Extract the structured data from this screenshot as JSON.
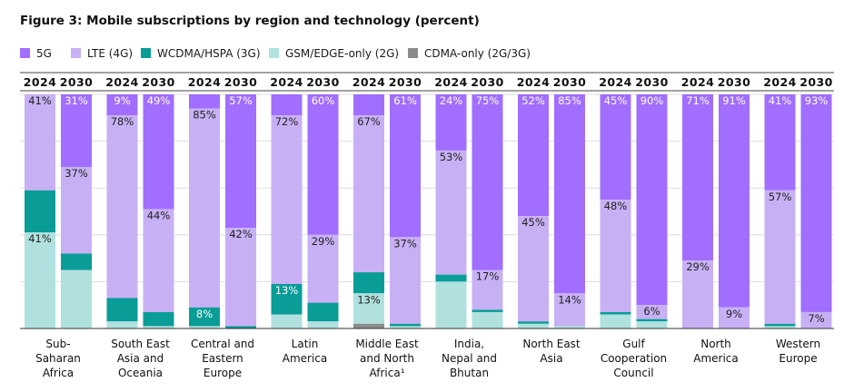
{
  "chart_data": {
    "type": "bar",
    "stacked": true,
    "title": "Figure 3: Mobile subscriptions by region and technology (percent)",
    "ylim": [
      0,
      100
    ],
    "grid": true,
    "legend_position": "top-left",
    "years": [
      "2024",
      "2030"
    ],
    "series": [
      {
        "name": "5G",
        "color": "#a16eff"
      },
      {
        "name": "LTE (4G)",
        "color": "#c8b0f5"
      },
      {
        "name": "WCDMA/HSPA (3G)",
        "color": "#0a9c97"
      },
      {
        "name": "GSM/EDGE-only (2G)",
        "color": "#b0e1df"
      },
      {
        "name": "CDMA-only (2G/3G)",
        "color": "#8c8c8c"
      }
    ],
    "categories": [
      {
        "label": [
          "Sub-",
          "Saharan",
          "Africa"
        ],
        "bars": [
          {
            "year": "2024",
            "values": [
              0,
              41,
              18,
              41,
              0
            ],
            "labels": [
              "",
              "41%",
              "",
              "41%",
              ""
            ]
          },
          {
            "year": "2030",
            "values": [
              31,
              37,
              7,
              25,
              0
            ],
            "labels": [
              "31%",
              "37%",
              "",
              "",
              ""
            ]
          }
        ]
      },
      {
        "label": [
          "South East",
          "Asia and",
          "Oceania"
        ],
        "bars": [
          {
            "year": "2024",
            "values": [
              9,
              78,
              10,
              3,
              0
            ],
            "labels": [
              "9%",
              "78%",
              "",
              "",
              ""
            ]
          },
          {
            "year": "2030",
            "values": [
              49,
              44,
              6,
              1,
              0
            ],
            "labels": [
              "49%",
              "44%",
              "",
              "",
              ""
            ]
          }
        ]
      },
      {
        "label": [
          "Central and",
          "Eastern",
          "Europe"
        ],
        "bars": [
          {
            "year": "2024",
            "values": [
              6,
              85,
              8,
              1,
              0
            ],
            "labels": [
              "",
              "85%",
              "8%",
              "",
              ""
            ]
          },
          {
            "year": "2030",
            "values": [
              57,
              42,
              1,
              0,
              0
            ],
            "labels": [
              "57%",
              "42%",
              "",
              "",
              ""
            ]
          }
        ]
      },
      {
        "label": [
          "Latin",
          "America"
        ],
        "bars": [
          {
            "year": "2024",
            "values": [
              9,
              72,
              13,
              6,
              0
            ],
            "labels": [
              "",
              "72%",
              "13%",
              "",
              ""
            ]
          },
          {
            "year": "2030",
            "values": [
              60,
              29,
              8,
              3,
              0
            ],
            "labels": [
              "60%",
              "29%",
              "",
              "",
              ""
            ]
          }
        ]
      },
      {
        "label": [
          "Middle East",
          "and North",
          "Africa¹"
        ],
        "bars": [
          {
            "year": "2024",
            "values": [
              9,
              67,
              9,
              13,
              2
            ],
            "labels": [
              "",
              "67%",
              "",
              "13%",
              ""
            ]
          },
          {
            "year": "2030",
            "values": [
              61,
              37,
              1,
              1,
              0
            ],
            "labels": [
              "61%",
              "37%",
              "",
              "",
              ""
            ]
          }
        ]
      },
      {
        "label": [
          "India,",
          "Nepal and",
          "Bhutan"
        ],
        "bars": [
          {
            "year": "2024",
            "values": [
              24,
              53,
              3,
              20,
              0
            ],
            "labels": [
              "24%",
              "53%",
              "",
              "",
              ""
            ]
          },
          {
            "year": "2030",
            "values": [
              75,
              17,
              1,
              7,
              0
            ],
            "labels": [
              "75%",
              "17%",
              "",
              "",
              ""
            ]
          }
        ]
      },
      {
        "label": [
          "North East",
          "Asia"
        ],
        "bars": [
          {
            "year": "2024",
            "values": [
              52,
              45,
              1,
              2,
              0
            ],
            "labels": [
              "52%",
              "45%",
              "",
              "",
              ""
            ]
          },
          {
            "year": "2030",
            "values": [
              85,
              14,
              0,
              1,
              0
            ],
            "labels": [
              "85%",
              "14%",
              "",
              "",
              ""
            ]
          }
        ]
      },
      {
        "label": [
          "Gulf",
          "Cooperation",
          "Council"
        ],
        "bars": [
          {
            "year": "2024",
            "values": [
              45,
              48,
              1,
              6,
              0
            ],
            "labels": [
              "45%",
              "48%",
              "",
              "",
              ""
            ]
          },
          {
            "year": "2030",
            "values": [
              90,
              6,
              1,
              3,
              0
            ],
            "labels": [
              "90%",
              "6%",
              "",
              "",
              ""
            ]
          }
        ]
      },
      {
        "label": [
          "North",
          "America"
        ],
        "bars": [
          {
            "year": "2024",
            "values": [
              71,
              29,
              0,
              0,
              0
            ],
            "labels": [
              "71%",
              "29%",
              "",
              "",
              ""
            ]
          },
          {
            "year": "2030",
            "values": [
              91,
              9,
              0,
              0,
              0
            ],
            "labels": [
              "91%",
              "9%",
              "",
              "",
              ""
            ]
          }
        ]
      },
      {
        "label": [
          "Western",
          "Europe"
        ],
        "bars": [
          {
            "year": "2024",
            "values": [
              41,
              57,
              1,
              1,
              0
            ],
            "labels": [
              "41%",
              "57%",
              "",
              "",
              ""
            ]
          },
          {
            "year": "2030",
            "values": [
              93,
              7,
              0,
              0,
              0
            ],
            "labels": [
              "93%",
              "7%",
              "",
              "",
              ""
            ]
          }
        ]
      }
    ]
  }
}
